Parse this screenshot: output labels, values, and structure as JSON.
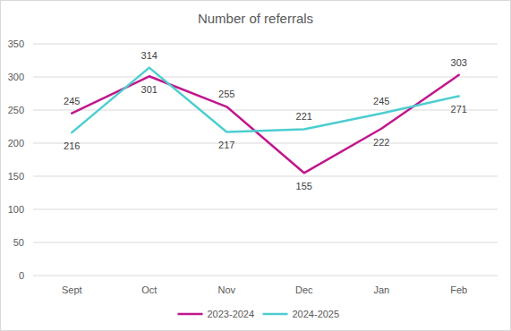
{
  "chart_data": {
    "type": "line",
    "title": "Number of referrals",
    "categories": [
      "Sept",
      "Oct",
      "Nov",
      "Dec",
      "Jan",
      "Feb"
    ],
    "series": [
      {
        "name": "2023-2024",
        "color": "#c0178d",
        "values": [
          245,
          301,
          255,
          155,
          222,
          303
        ]
      },
      {
        "name": "2024-2025",
        "color": "#4dcdd0",
        "values": [
          216,
          314,
          217,
          221,
          245,
          271
        ]
      }
    ],
    "ylim": [
      0,
      350
    ],
    "yticks": [
      0,
      50,
      100,
      150,
      200,
      250,
      300,
      350
    ],
    "grid": true,
    "legend": "bottom",
    "data_labels": true
  }
}
